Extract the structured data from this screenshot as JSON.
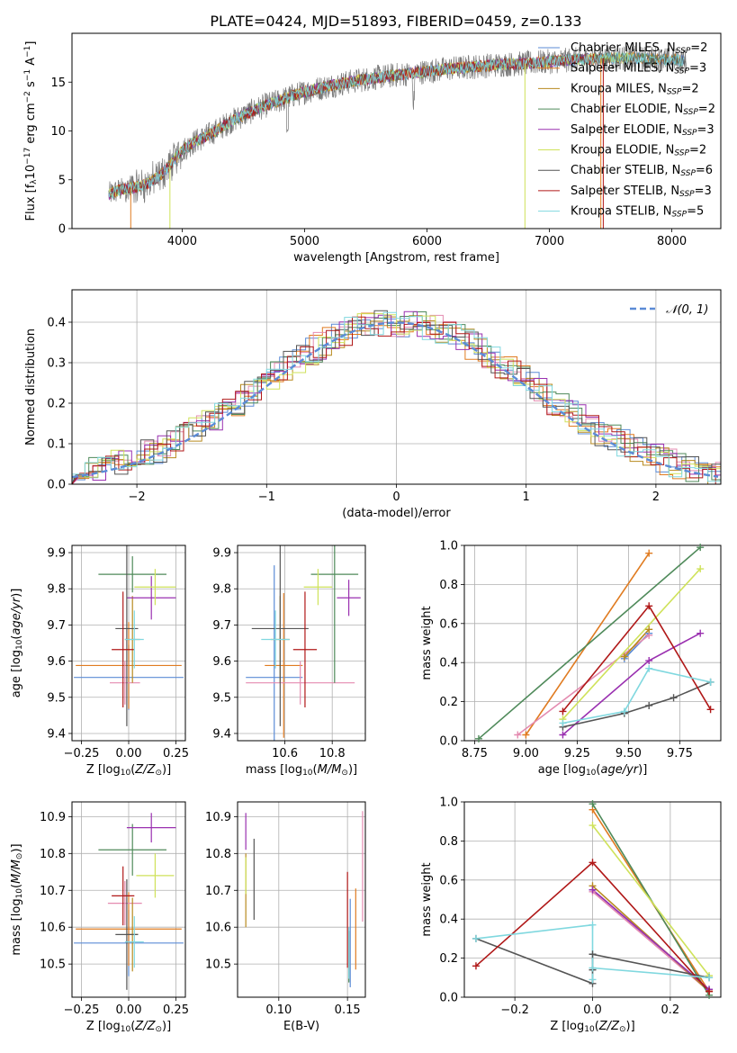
{
  "figure_title": "PLATE=0424, MJD=51893, FIBERID=0459, z=0.133",
  "colors": {
    "blue": "#5b8bd6",
    "orange": "#e07b20",
    "pink": "#e48bb0",
    "olive": "#b88a1f",
    "green": "#4f8a5a",
    "purple": "#9a30b0",
    "yellow": "#cfe25a",
    "gray": "#555555",
    "red": "#b01818",
    "cyan": "#80d8df"
  },
  "chart_data": [
    {
      "type": "line",
      "id": "spectrum",
      "title": "PLATE=0424, MJD=51893, FIBERID=0459, z=0.133",
      "xlabel": "wavelength [Angstrom, rest frame]",
      "ylabel": "Flux [f_λ10^-17 erg cm^-2 s^-1 A^-1]",
      "xlim": [
        3100,
        8400
      ],
      "ylim": [
        0,
        20
      ],
      "xticks": [
        4000,
        5000,
        6000,
        7000,
        8000
      ],
      "yticks": [
        0,
        5,
        10,
        15
      ],
      "grid": false,
      "legend_position": "upper-right",
      "continuum": {
        "x": [
          3400,
          3500,
          3600,
          3700,
          3800,
          3900,
          4000,
          4100,
          4200,
          4300,
          4400,
          4500,
          4600,
          4700,
          4800,
          4900,
          5000,
          5200,
          5400,
          5600,
          5800,
          6000,
          6200,
          6400,
          6600,
          6800,
          7000,
          7200,
          7400,
          7600,
          7800,
          8000,
          8100
        ],
        "y": [
          3.5,
          4.0,
          4.2,
          4.5,
          5.2,
          6.5,
          8.0,
          8.9,
          9.5,
          10.2,
          11.0,
          11.6,
          12.2,
          12.7,
          13.1,
          13.6,
          14.0,
          14.6,
          15.1,
          15.5,
          15.8,
          16.1,
          16.4,
          16.6,
          16.8,
          16.9,
          17.1,
          17.3,
          17.4,
          17.5,
          17.4,
          17.3,
          17.2
        ]
      },
      "series": [
        {
          "name": "Chabrier MILES, N_SSP=2",
          "color": "#5b8bd6"
        },
        {
          "name": "Salpeter MILES, N_SSP=3",
          "color": "#e07b20"
        },
        {
          "name": "Kroupa MILES, N_SSP=2",
          "color": "#b88a1f"
        },
        {
          "name": "Chabrier ELODIE, N_SSP=2",
          "color": "#4f8a5a"
        },
        {
          "name": "Salpeter ELODIE, N_SSP=3",
          "color": "#9a30b0"
        },
        {
          "name": "Kroupa ELODIE, N_SSP=2",
          "color": "#cfe25a"
        },
        {
          "name": "Chabrier STELIB, N_SSP=6",
          "color": "#555555"
        },
        {
          "name": "Salpeter STELIB, N_SSP=3",
          "color": "#b01818"
        },
        {
          "name": "Kroupa STELIB, N_SSP=5",
          "color": "#80d8df"
        }
      ]
    },
    {
      "type": "line",
      "id": "residuals",
      "xlabel": "(data-model)/error",
      "ylabel": "Normed distribution",
      "xlim": [
        -2.5,
        2.5
      ],
      "ylim": [
        0,
        0.48
      ],
      "xticks": [
        -2,
        -1,
        0,
        1,
        2
      ],
      "yticks": [
        0.0,
        0.1,
        0.2,
        0.3,
        0.4
      ],
      "grid": true,
      "legend_position": "upper-right",
      "legend": [
        "𝒩(0, 1)"
      ],
      "bin_width": 0.1
    },
    {
      "type": "scatter",
      "id": "z-age",
      "xlabel": "Z [log10(Z/Z⊙)]",
      "ylabel": "age [log10(age/yr)]",
      "xlim": [
        -0.3,
        0.3
      ],
      "ylim": [
        9.38,
        9.92
      ],
      "xticks": [
        -0.25,
        0.0,
        0.25
      ],
      "yticks": [
        9.4,
        9.5,
        9.6,
        9.7,
        9.8,
        9.9
      ],
      "grid": true,
      "points": [
        {
          "x": 0.0,
          "y": 9.555,
          "xerr": 0.29,
          "yerr": 0.09,
          "color": "#5b8bd6"
        },
        {
          "x": 0.0,
          "y": 9.588,
          "xerr": 0.28,
          "yerr": 0.12,
          "color": "#e07b20"
        },
        {
          "x": -0.02,
          "y": 9.54,
          "xerr": 0.08,
          "yerr": 0.06,
          "color": "#e48bb0"
        },
        {
          "x": 0.02,
          "y": 9.66,
          "xerr": 0.04,
          "yerr": 0.12,
          "color": "#b88a1f"
        },
        {
          "x": 0.02,
          "y": 9.84,
          "xerr": 0.18,
          "yerr": 0.05,
          "color": "#4f8a5a"
        },
        {
          "x": 0.12,
          "y": 9.775,
          "xerr": 0.13,
          "yerr": 0.06,
          "color": "#9a30b0"
        },
        {
          "x": 0.14,
          "y": 9.805,
          "xerr": 0.11,
          "yerr": 0.05,
          "color": "#cfe25a"
        },
        {
          "x": -0.01,
          "y": 9.69,
          "xerr": 0.06,
          "yerr": 0.27,
          "color": "#555555"
        },
        {
          "x": -0.03,
          "y": 9.632,
          "xerr": 0.06,
          "yerr": 0.16,
          "color": "#b01818"
        },
        {
          "x": 0.03,
          "y": 9.66,
          "xerr": 0.05,
          "yerr": 0.08,
          "color": "#80d8df"
        }
      ]
    },
    {
      "type": "scatter",
      "id": "mass-age",
      "xlabel": "mass [log10(M/M⊙)]",
      "ylabel": "",
      "xlim": [
        10.4,
        10.94
      ],
      "ylim": [
        9.38,
        9.92
      ],
      "xticks": [
        10.6,
        10.8
      ],
      "yticks": [
        9.4,
        9.5,
        9.6,
        9.7,
        9.8,
        9.9
      ],
      "grid": true,
      "points": [
        {
          "x": 10.555,
          "y": 9.555,
          "xerr": 0.12,
          "yerr": 0.31,
          "color": "#5b8bd6"
        },
        {
          "x": 10.595,
          "y": 9.588,
          "xerr": 0.08,
          "yerr": 0.2,
          "color": "#e07b20"
        },
        {
          "x": 10.665,
          "y": 9.54,
          "xerr": 0.23,
          "yerr": 0.06,
          "color": "#e48bb0"
        },
        {
          "x": 10.58,
          "y": 9.66,
          "xerr": 0.04,
          "yerr": 0.12,
          "color": "#b88a1f"
        },
        {
          "x": 10.81,
          "y": 9.84,
          "xerr": 0.1,
          "yerr": 0.3,
          "color": "#4f8a5a"
        },
        {
          "x": 10.87,
          "y": 9.775,
          "xerr": 0.05,
          "yerr": 0.05,
          "color": "#9a30b0"
        },
        {
          "x": 10.74,
          "y": 9.805,
          "xerr": 0.06,
          "yerr": 0.05,
          "color": "#cfe25a"
        },
        {
          "x": 10.58,
          "y": 9.69,
          "xerr": 0.12,
          "yerr": 0.27,
          "color": "#555555"
        },
        {
          "x": 10.685,
          "y": 9.632,
          "xerr": 0.05,
          "yerr": 0.16,
          "color": "#b01818"
        },
        {
          "x": 10.56,
          "y": 9.66,
          "xerr": 0.06,
          "yerr": 0.08,
          "color": "#80d8df"
        }
      ]
    },
    {
      "type": "line",
      "id": "age-massweight",
      "xlabel": "age [log10(age/yr)]",
      "ylabel": "mass weight",
      "xlim": [
        8.7,
        9.95
      ],
      "ylim": [
        0,
        1
      ],
      "xticks": [
        8.75,
        9.0,
        9.25,
        9.5,
        9.75
      ],
      "yticks": [
        0.0,
        0.2,
        0.4,
        0.6,
        0.8,
        1.0
      ],
      "grid": true,
      "series": [
        {
          "color": "#5b8bd6",
          "x": [
            9.48,
            9.6
          ],
          "y": [
            0.42,
            0.55
          ]
        },
        {
          "color": "#e07b20",
          "x": [
            9.0,
            9.6
          ],
          "y": [
            0.03,
            0.96
          ]
        },
        {
          "color": "#e48bb0",
          "x": [
            8.96,
            9.6
          ],
          "y": [
            0.03,
            0.54
          ]
        },
        {
          "color": "#b88a1f",
          "x": [
            9.48,
            9.6
          ],
          "y": [
            0.43,
            0.57
          ]
        },
        {
          "color": "#4f8a5a",
          "x": [
            8.77,
            9.85
          ],
          "y": [
            0.01,
            0.99
          ]
        },
        {
          "color": "#9a30b0",
          "x": [
            9.18,
            9.6,
            9.85
          ],
          "y": [
            0.03,
            0.41,
            0.55
          ]
        },
        {
          "color": "#cfe25a",
          "x": [
            9.18,
            9.85
          ],
          "y": [
            0.11,
            0.88
          ]
        },
        {
          "color": "#555555",
          "x": [
            9.18,
            9.48,
            9.6,
            9.72,
            9.9
          ],
          "y": [
            0.07,
            0.14,
            0.18,
            0.22,
            0.3
          ]
        },
        {
          "color": "#b01818",
          "x": [
            9.18,
            9.6,
            9.9
          ],
          "y": [
            0.15,
            0.69,
            0.16
          ]
        },
        {
          "color": "#80d8df",
          "x": [
            9.18,
            9.48,
            9.6,
            9.9
          ],
          "y": [
            0.09,
            0.15,
            0.37,
            0.3
          ]
        }
      ]
    },
    {
      "type": "scatter",
      "id": "z-mass",
      "xlabel": "Z [log10(Z/Z⊙)]",
      "ylabel": "mass [log10(M/M⊙)]",
      "xlim": [
        -0.3,
        0.3
      ],
      "ylim": [
        10.41,
        10.94
      ],
      "xticks": [
        -0.25,
        0.0,
        0.25
      ],
      "yticks": [
        10.5,
        10.6,
        10.7,
        10.8,
        10.9
      ],
      "grid": true,
      "points": [
        {
          "x": 0.0,
          "y": 10.557,
          "xerr": 0.29,
          "yerr": 0.09,
          "color": "#5b8bd6"
        },
        {
          "x": 0.0,
          "y": 10.595,
          "xerr": 0.28,
          "yerr": 0.1,
          "color": "#e07b20"
        },
        {
          "x": -0.02,
          "y": 10.665,
          "xerr": 0.09,
          "yerr": 0.06,
          "color": "#e48bb0"
        },
        {
          "x": 0.02,
          "y": 10.58,
          "xerr": 0.03,
          "yerr": 0.1,
          "color": "#b88a1f"
        },
        {
          "x": 0.02,
          "y": 10.81,
          "xerr": 0.18,
          "yerr": 0.07,
          "color": "#4f8a5a"
        },
        {
          "x": 0.12,
          "y": 10.87,
          "xerr": 0.13,
          "yerr": 0.04,
          "color": "#9a30b0"
        },
        {
          "x": 0.14,
          "y": 10.74,
          "xerr": 0.1,
          "yerr": 0.06,
          "color": "#cfe25a"
        },
        {
          "x": -0.01,
          "y": 10.58,
          "xerr": 0.06,
          "yerr": 0.15,
          "color": "#555555"
        },
        {
          "x": -0.03,
          "y": 10.685,
          "xerr": 0.06,
          "yerr": 0.08,
          "color": "#b01818"
        },
        {
          "x": 0.03,
          "y": 10.56,
          "xerr": 0.05,
          "yerr": 0.07,
          "color": "#80d8df"
        }
      ]
    },
    {
      "type": "scatter",
      "id": "ebv-mass",
      "xlabel": "E(B-V)",
      "ylabel": "",
      "xlim": [
        0.07,
        0.163
      ],
      "ylim": [
        10.41,
        10.94
      ],
      "xticks": [
        0.1,
        0.15
      ],
      "yticks": [
        10.5,
        10.6,
        10.7,
        10.8,
        10.9
      ],
      "grid": true,
      "points": [
        {
          "x": 0.152,
          "y": 10.557,
          "yerr": 0.12,
          "color": "#5b8bd6"
        },
        {
          "x": 0.156,
          "y": 10.595,
          "yerr": 0.11,
          "color": "#e07b20"
        },
        {
          "x": 0.161,
          "y": 10.765,
          "yerr": 0.15,
          "color": "#e48bb0"
        },
        {
          "x": 0.076,
          "y": 10.7,
          "yerr": 0.1,
          "color": "#b88a1f"
        },
        {
          "x": 0.151,
          "y": 10.52,
          "yerr": 0.07,
          "color": "#4f8a5a"
        },
        {
          "x": 0.076,
          "y": 10.86,
          "yerr": 0.05,
          "color": "#9a30b0"
        },
        {
          "x": 0.076,
          "y": 10.74,
          "yerr": 0.05,
          "color": "#cfe25a"
        },
        {
          "x": 0.082,
          "y": 10.73,
          "yerr": 0.11,
          "color": "#555555"
        },
        {
          "x": 0.15,
          "y": 10.62,
          "yerr": 0.13,
          "color": "#b01818"
        },
        {
          "x": 0.151,
          "y": 10.53,
          "yerr": 0.07,
          "color": "#80d8df"
        }
      ]
    },
    {
      "type": "line",
      "id": "z-massweight",
      "xlabel": "Z [log10(Z/Z⊙)]",
      "ylabel": "mass weight",
      "xlim": [
        -0.33,
        0.33
      ],
      "ylim": [
        0,
        1
      ],
      "xticks": [
        -0.2,
        0.0,
        0.2
      ],
      "yticks": [
        0.0,
        0.2,
        0.4,
        0.6,
        0.8,
        1.0
      ],
      "grid": true,
      "series": [
        {
          "color": "#5b8bd6",
          "x": [
            0.0,
            0.3
          ],
          "y": [
            0.55,
            0.04
          ]
        },
        {
          "color": "#e07b20",
          "x": [
            0.0,
            0.3
          ],
          "y": [
            0.96,
            0.03
          ]
        },
        {
          "color": "#e48bb0",
          "x": [
            0.0,
            0.3
          ],
          "y": [
            0.54,
            0.03
          ]
        },
        {
          "color": "#b88a1f",
          "x": [
            0.0,
            0.3
          ],
          "y": [
            0.57,
            0.03
          ]
        },
        {
          "color": "#4f8a5a",
          "x": [
            0.0,
            0.3
          ],
          "y": [
            0.99,
            0.01
          ]
        },
        {
          "color": "#9a30b0",
          "x": [
            0.0,
            0.3
          ],
          "y": [
            0.55,
            0.04
          ]
        },
        {
          "color": "#cfe25a",
          "x": [
            0.0,
            0.3
          ],
          "y": [
            0.88,
            0.11
          ]
        },
        {
          "color": "#555555",
          "x": [
            -0.3,
            0.0,
            0.0,
            0.0,
            0.3
          ],
          "y": [
            0.3,
            0.07,
            0.14,
            0.22,
            0.1
          ]
        },
        {
          "color": "#b01818",
          "x": [
            -0.3,
            0.0,
            0.3
          ],
          "y": [
            0.16,
            0.69,
            0.03
          ]
        },
        {
          "color": "#80d8df",
          "x": [
            -0.3,
            0.0,
            0.0,
            0.0,
            0.3
          ],
          "y": [
            0.3,
            0.37,
            0.09,
            0.15,
            0.1
          ]
        }
      ]
    }
  ]
}
